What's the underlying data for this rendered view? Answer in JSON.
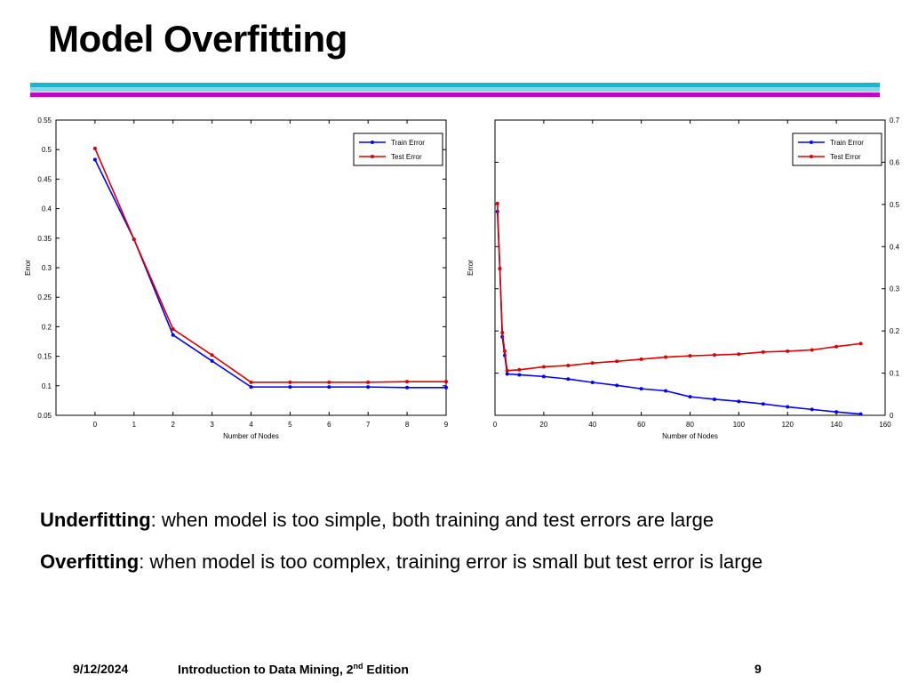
{
  "slide": {
    "title": "Model Overfitting",
    "colors": {
      "rule_top": "#16b4d8",
      "rule_mid": "#7fd7ea",
      "rule_bottom": "#c800c8"
    }
  },
  "chart_data": [
    {
      "type": "line",
      "xlabel": "Number of Nodes",
      "ylabel": "Error",
      "xlim": [
        -1,
        9
      ],
      "ylim": [
        0.05,
        0.55
      ],
      "xticks": [
        0,
        1,
        2,
        3,
        4,
        5,
        6,
        7,
        8,
        9
      ],
      "yticks": [
        0.05,
        0.1,
        0.15,
        0.2,
        0.25,
        0.3,
        0.35,
        0.4,
        0.45,
        0.5,
        0.55
      ],
      "xtick_labels": [
        "0",
        "1",
        "2",
        "3",
        "4",
        "5",
        "6",
        "7",
        "8",
        "9"
      ],
      "ytick_labels": [
        "0.05",
        "0.1",
        "0.15",
        "0.2",
        "0.25",
        "0.3",
        "0.35",
        "0.4",
        "0.45",
        "0.5",
        "0.55"
      ],
      "legend_position": "top-right",
      "grid": false,
      "series": [
        {
          "name": "Train Error",
          "color": "#0000ff",
          "x": [
            0,
            1,
            2,
            3,
            4,
            5,
            6,
            7,
            8,
            9
          ],
          "values": [
            0.483,
            0.348,
            0.186,
            0.142,
            0.098,
            0.098,
            0.098,
            0.098,
            0.097,
            0.097
          ]
        },
        {
          "name": "Test Error",
          "color": "#dd0000",
          "x": [
            0,
            1,
            2,
            3,
            4,
            5,
            6,
            7,
            8,
            9
          ],
          "values": [
            0.502,
            0.348,
            0.196,
            0.152,
            0.106,
            0.106,
            0.106,
            0.106,
            0.107,
            0.107
          ]
        }
      ]
    },
    {
      "type": "line",
      "xlabel": "Number of Nodes",
      "ylabel": "Error",
      "xlim": [
        0,
        160
      ],
      "ylim": [
        0,
        0.7
      ],
      "xticks": [
        0,
        20,
        40,
        60,
        80,
        100,
        120,
        140,
        160
      ],
      "yticks": [
        0,
        0.1,
        0.2,
        0.3,
        0.4,
        0.5,
        0.6,
        0.7
      ],
      "xtick_labels": [
        "0",
        "20",
        "40",
        "60",
        "80",
        "100",
        "120",
        "140",
        "160"
      ],
      "ytick_labels": [
        "0",
        "0.1",
        "0.2",
        "0.3",
        "0.4",
        "0.5",
        "0.6",
        "0.7"
      ],
      "legend_position": "top-right",
      "grid": false,
      "series": [
        {
          "name": "Train Error",
          "color": "#0000ff",
          "x": [
            1,
            2,
            3,
            4,
            5,
            10,
            20,
            30,
            40,
            50,
            60,
            70,
            80,
            90,
            100,
            110,
            120,
            130,
            140,
            150
          ],
          "values": [
            0.483,
            0.348,
            0.186,
            0.142,
            0.098,
            0.096,
            0.092,
            0.086,
            0.078,
            0.071,
            0.063,
            0.058,
            0.044,
            0.038,
            0.033,
            0.027,
            0.02,
            0.014,
            0.008,
            0.003
          ]
        },
        {
          "name": "Test Error",
          "color": "#dd0000",
          "x": [
            1,
            2,
            3,
            4,
            5,
            10,
            20,
            30,
            40,
            50,
            60,
            70,
            80,
            90,
            100,
            110,
            120,
            130,
            140,
            150
          ],
          "values": [
            0.502,
            0.348,
            0.196,
            0.152,
            0.106,
            0.108,
            0.115,
            0.118,
            0.124,
            0.128,
            0.133,
            0.138,
            0.141,
            0.143,
            0.145,
            0.15,
            0.152,
            0.155,
            0.163,
            0.17
          ]
        }
      ]
    }
  ],
  "text": {
    "line1_bold": "Underfitting",
    "line1_rest": ": when model is too simple, both training and test errors are large",
    "line2_bold": "Overfitting",
    "line2_rest": ": when model is too complex, training error is small but test error is large"
  },
  "footer": {
    "date": "9/12/2024",
    "course": "Introduction to Data Mining, 2",
    "course_sup": "nd",
    "course_tail": " Edition",
    "page": "9"
  }
}
